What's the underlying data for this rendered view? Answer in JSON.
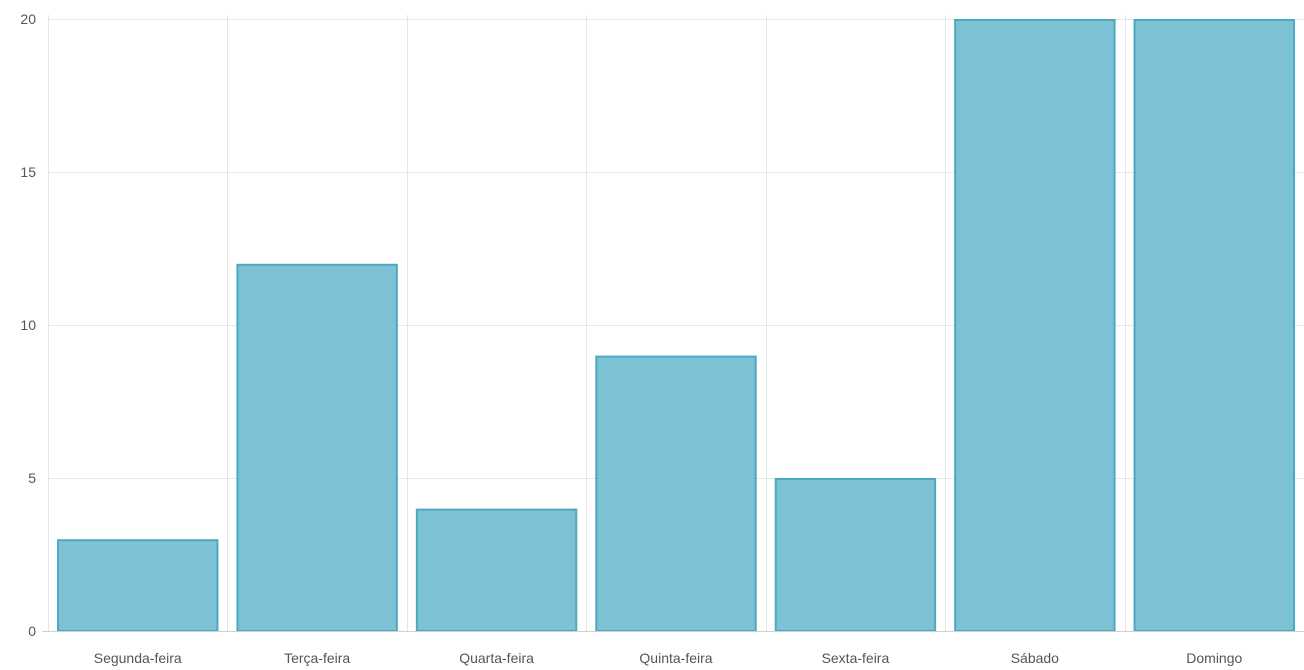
{
  "chart_data": {
    "type": "bar",
    "title": "",
    "xlabel": "",
    "ylabel": "",
    "categories": [
      "Segunda-feira",
      "Terça-feira",
      "Quarta-feira",
      "Quinta-feira",
      "Sexta-feira",
      "Sábado",
      "Domingo"
    ],
    "values": [
      3,
      12,
      4,
      9,
      5,
      20,
      20
    ],
    "ylim": [
      0,
      20
    ],
    "yticks": [
      0,
      5,
      10,
      15,
      20
    ],
    "grid": true,
    "legend": "none",
    "colors": {
      "bar_fill": "#7dc2d4",
      "bar_stroke": "#4ba9c0",
      "grid": "#e6e6e6",
      "tick_text": "#555555"
    }
  }
}
